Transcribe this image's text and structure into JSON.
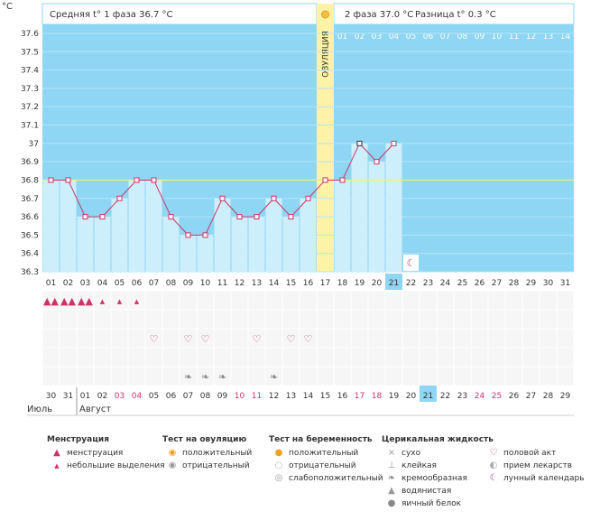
{
  "chart_data": {
    "type": "line",
    "y_unit": "°C",
    "ylim": [
      36.3,
      37.6
    ],
    "y_ticks": [
      "37.6",
      "37.5",
      "37.4",
      "37.3",
      "37.2",
      "37.1",
      "37",
      "36.9",
      "36.8",
      "36.7",
      "36.6",
      "36.5",
      "36.4",
      "36.3"
    ],
    "cover_line": 36.8,
    "phase1": {
      "label": "Средняя t° 1 фаза",
      "value": "36.7 °C"
    },
    "phase2": {
      "label": "2 фаза",
      "value": "37.0 °C"
    },
    "difference": {
      "label": "Разница t°",
      "value": "0.3 °C"
    },
    "ovulation_label": "ОВУЛЯЦИЯ",
    "ovulation_cycle_day": 17,
    "post_ovulation_days": [
      "01",
      "02",
      "03",
      "04",
      "05",
      "06",
      "07",
      "08",
      "09",
      "10",
      "11",
      "12",
      "13",
      "14"
    ],
    "cycle_days": [
      "01",
      "02",
      "03",
      "04",
      "05",
      "06",
      "07",
      "08",
      "09",
      "10",
      "11",
      "12",
      "13",
      "14",
      "15",
      "16",
      "17",
      "18",
      "19",
      "20",
      "21",
      "22",
      "23",
      "24",
      "25",
      "26",
      "27",
      "28",
      "29",
      "30",
      "31"
    ],
    "current_cycle_day": 21,
    "series": [
      {
        "values": [
          36.8,
          36.8,
          36.6,
          36.6,
          36.7,
          36.8,
          36.8,
          36.6,
          36.5,
          36.5,
          36.7,
          36.6,
          36.6,
          36.7,
          36.6,
          36.7,
          36.8,
          36.8,
          37.0,
          36.9,
          37.0
        ]
      }
    ],
    "moon_cycle_day": 22,
    "menstruation_heavy_days": [
      1,
      2,
      3
    ],
    "menstruation_light_days": [
      4,
      5,
      6
    ],
    "intercourse_days": [
      7,
      9,
      10,
      13,
      15,
      16
    ],
    "medication_days": [
      9,
      10,
      11,
      14
    ],
    "calendar_dates": [
      "30",
      "31",
      "01",
      "02",
      "03",
      "04",
      "05",
      "06",
      "07",
      "08",
      "09",
      "10",
      "11",
      "12",
      "13",
      "14",
      "15",
      "16",
      "17",
      "18",
      "19",
      "20",
      "21",
      "22",
      "23",
      "24",
      "25",
      "26",
      "27",
      "28",
      "29"
    ],
    "weekend_date_indices": [
      4,
      5,
      11,
      12,
      18,
      19,
      25,
      26
    ],
    "today_date_index": 22,
    "month_july": "Июль",
    "month_august": "Август",
    "colors": {
      "blue": "#8ed6f3",
      "fill": "#cdeefb",
      "ovulation": "#fcf3a6",
      "line": "#cc3366",
      "weekend": "#cc3366",
      "today": "#8ed6f3"
    }
  },
  "legend": {
    "menstruation": {
      "title": "Менструация",
      "items": [
        "менструация",
        "небольшие выделения"
      ]
    },
    "ovulation_test": {
      "title": "Тест на овуляцию",
      "items": [
        "положительный",
        "отрицательный"
      ]
    },
    "pregnancy_test": {
      "title": "Тест на беременность",
      "items": [
        "положительный",
        "отрицательный",
        "слабоположительный"
      ]
    },
    "cervical": {
      "title": "Церикальная жидкость",
      "items": [
        "сухо",
        "клейкая",
        "кремообразная",
        "водянистая",
        "яичный белок"
      ]
    },
    "other": {
      "items": [
        "половой акт",
        "прием лекарств",
        "лунный календарь"
      ]
    }
  }
}
